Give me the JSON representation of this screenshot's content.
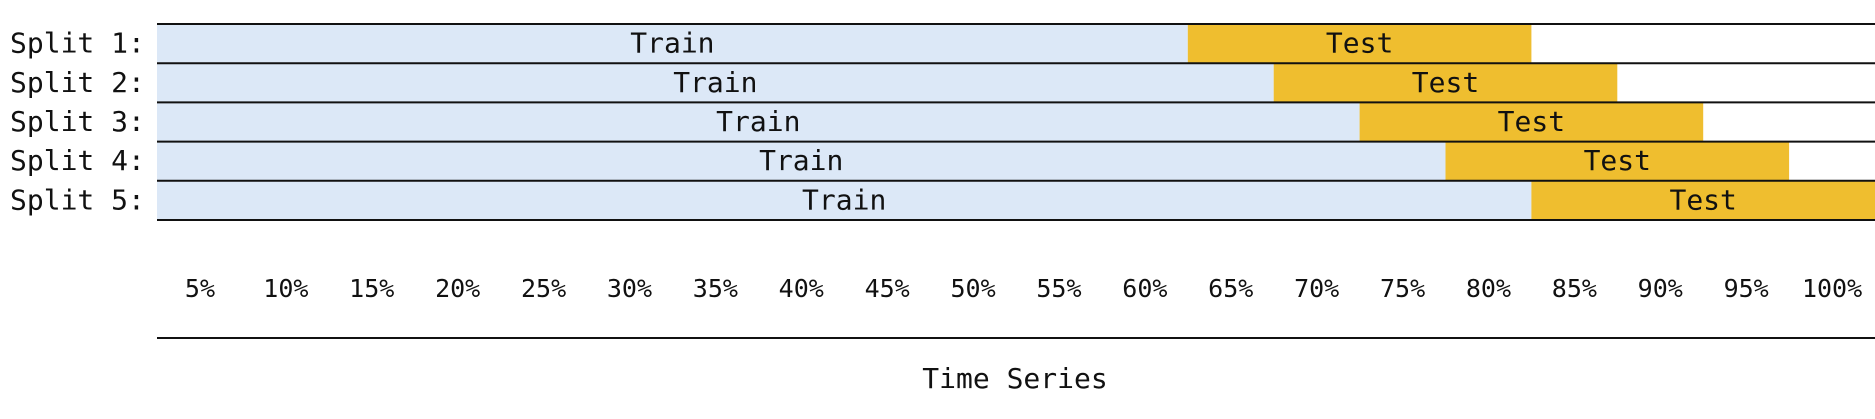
{
  "diagram": {
    "rows": [
      {
        "label": "Split 1:",
        "train_end": 60,
        "test_end": 80
      },
      {
        "label": "Split 2:",
        "train_end": 65,
        "test_end": 85
      },
      {
        "label": "Split 3:",
        "train_end": 70,
        "test_end": 90
      },
      {
        "label": "Split 4:",
        "train_end": 75,
        "test_end": 95
      },
      {
        "label": "Split 5:",
        "train_end": 80,
        "test_end": 100
      }
    ],
    "train_label": "Train",
    "test_label": "Test",
    "ticks": [
      "5%",
      "10%",
      "15%",
      "20%",
      "25%",
      "30%",
      "35%",
      "40%",
      "45%",
      "50%",
      "55%",
      "60%",
      "65%",
      "70%",
      "75%",
      "80%",
      "85%",
      "90%",
      "95%",
      "100%"
    ],
    "axis_title": "Time Series",
    "colors": {
      "train": "#dce8f7",
      "test": "#efbe2f",
      "line": "#111111",
      "text": "#111111"
    }
  }
}
